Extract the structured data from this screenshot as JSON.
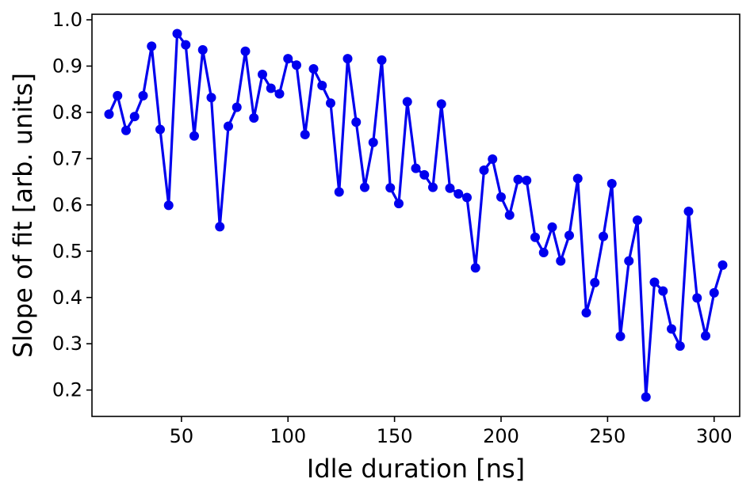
{
  "chart_data": {
    "type": "line",
    "title": "",
    "xlabel": "Idle duration [ns]",
    "ylabel": "Slope of fit [arb. units]",
    "xlim": [
      8,
      312
    ],
    "ylim": [
      0.143,
      1.012
    ],
    "xticks": [
      50,
      100,
      150,
      200,
      250,
      300
    ],
    "yticks": [
      0.2,
      0.3,
      0.4,
      0.5,
      0.6,
      0.7,
      0.8,
      0.9,
      1.0
    ],
    "xtick_labels": [
      "50",
      "100",
      "150",
      "200",
      "250",
      "300"
    ],
    "ytick_labels": [
      "0.2",
      "0.3",
      "0.4",
      "0.5",
      "0.6",
      "0.7",
      "0.8",
      "0.9",
      "1.0"
    ],
    "grid": false,
    "legend": "none",
    "series": [
      {
        "color": "#0000ee",
        "marker": "circle",
        "x": [
          16,
          20,
          24,
          28,
          32,
          36,
          40,
          44,
          48,
          52,
          56,
          60,
          64,
          68,
          72,
          76,
          80,
          84,
          88,
          92,
          96,
          100,
          104,
          108,
          112,
          116,
          120,
          124,
          128,
          132,
          136,
          140,
          144,
          148,
          152,
          156,
          160,
          164,
          168,
          172,
          176,
          180,
          184,
          188,
          192,
          196,
          200,
          204,
          208,
          212,
          216,
          220,
          224,
          228,
          232,
          236,
          240,
          244,
          248,
          252,
          256,
          260,
          264,
          268,
          272,
          276,
          280,
          284,
          288,
          292,
          296,
          300,
          304
        ],
        "y": [
          0.796,
          0.836,
          0.761,
          0.791,
          0.836,
          0.943,
          0.763,
          0.599,
          0.97,
          0.946,
          0.749,
          0.935,
          0.832,
          0.553,
          0.77,
          0.811,
          0.932,
          0.788,
          0.882,
          0.852,
          0.84,
          0.916,
          0.902,
          0.752,
          0.894,
          0.858,
          0.82,
          0.628,
          0.916,
          0.779,
          0.638,
          0.735,
          0.913,
          0.637,
          0.603,
          0.823,
          0.679,
          0.665,
          0.638,
          0.818,
          0.636,
          0.624,
          0.616,
          0.464,
          0.675,
          0.699,
          0.617,
          0.578,
          0.655,
          0.653,
          0.53,
          0.497,
          0.552,
          0.479,
          0.534,
          0.657,
          0.367,
          0.432,
          0.532,
          0.646,
          0.316,
          0.479,
          0.567,
          0.185,
          0.433,
          0.414,
          0.332,
          0.295,
          0.586,
          0.399,
          0.317,
          0.41,
          0.47
        ]
      }
    ]
  }
}
